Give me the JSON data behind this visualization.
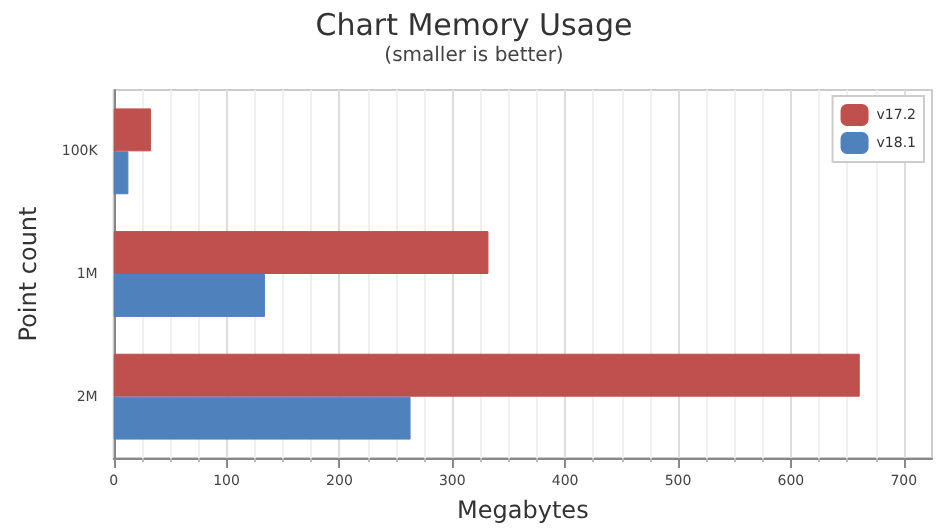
{
  "chart_data": {
    "type": "bar",
    "orientation": "horizontal",
    "title": "Chart Memory Usage",
    "subtitle": "(smaller is better)",
    "xlabel": "Megabytes",
    "ylabel": "Point count",
    "categories": [
      "100K",
      "1M",
      "2M"
    ],
    "series": [
      {
        "name": "v17.2",
        "color": "#c0504d",
        "values": [
          33,
          332,
          661
        ]
      },
      {
        "name": "v18.1",
        "color": "#4f81bd",
        "values": [
          13,
          134,
          263
        ]
      }
    ],
    "xlim": [
      0,
      725
    ],
    "xticks": [
      0,
      100,
      200,
      300,
      400,
      500,
      600,
      700
    ],
    "grid": "x",
    "legend": "top right"
  }
}
